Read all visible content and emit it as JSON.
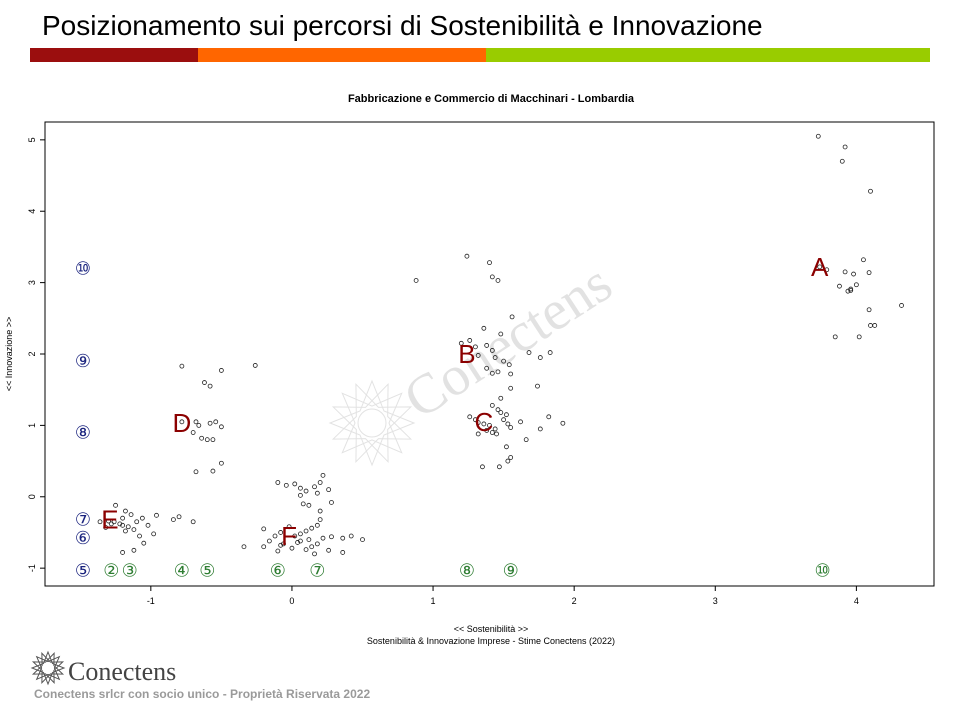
{
  "slide": {
    "title": "Posizionamento sui percorsi di Sostenibilità e Innovazione",
    "stripe_colors": [
      "#9b0e0e",
      "#ff6600",
      "#99cc00"
    ]
  },
  "footer": {
    "brand": "Conectens",
    "text": "Conectens srlcr con socio unico - Proprietà Riservata 2022"
  },
  "watermark": "Conectens",
  "chart_data": {
    "type": "scatter",
    "title": "Fabbricazione e Commercio di Macchinari - Lombardia",
    "xlabel": "<< Sostenibilità >>",
    "subtitle": "Sostenibilità & Innovazione Imprese - Stime Conectens (2022)",
    "ylabel": "<< Innovazione >>",
    "xlim": [
      -1.75,
      4.55
    ],
    "ylim": [
      -1.25,
      5.25
    ],
    "x_ticks": [
      -1,
      0,
      1,
      2,
      3,
      4
    ],
    "y_ticks": [
      -1,
      0,
      1,
      2,
      3,
      4,
      5
    ],
    "grid": false,
    "points": [
      [
        3.73,
        5.05
      ],
      [
        3.92,
        4.9
      ],
      [
        3.9,
        4.7
      ],
      [
        4.1,
        4.28
      ],
      [
        4.05,
        3.32
      ],
      [
        4.09,
        3.14
      ],
      [
        3.98,
        3.12
      ],
      [
        3.92,
        3.15
      ],
      [
        3.79,
        3.18
      ],
      [
        3.74,
        3.22
      ],
      [
        3.96,
        2.91
      ],
      [
        4.0,
        2.97
      ],
      [
        3.88,
        2.95
      ],
      [
        3.94,
        2.88
      ],
      [
        3.96,
        2.89
      ],
      [
        4.09,
        2.62
      ],
      [
        4.32,
        2.68
      ],
      [
        4.1,
        2.4
      ],
      [
        4.13,
        2.4
      ],
      [
        3.85,
        2.24
      ],
      [
        4.02,
        2.24
      ],
      [
        1.24,
        3.37
      ],
      [
        1.4,
        3.28
      ],
      [
        1.42,
        3.08
      ],
      [
        1.46,
        3.03
      ],
      [
        0.88,
        3.03
      ],
      [
        1.56,
        2.52
      ],
      [
        1.36,
        2.36
      ],
      [
        1.48,
        2.28
      ],
      [
        1.26,
        2.19
      ],
      [
        1.2,
        2.15
      ],
      [
        1.3,
        2.1
      ],
      [
        1.38,
        2.12
      ],
      [
        1.42,
        2.05
      ],
      [
        1.32,
        1.98
      ],
      [
        1.44,
        1.95
      ],
      [
        1.5,
        1.9
      ],
      [
        1.54,
        1.85
      ],
      [
        1.38,
        1.8
      ],
      [
        1.46,
        1.75
      ],
      [
        1.42,
        1.73
      ],
      [
        1.55,
        1.72
      ],
      [
        1.68,
        2.02
      ],
      [
        1.76,
        1.95
      ],
      [
        1.83,
        2.02
      ],
      [
        1.74,
        1.55
      ],
      [
        1.55,
        1.52
      ],
      [
        1.48,
        1.38
      ],
      [
        1.42,
        1.28
      ],
      [
        1.46,
        1.22
      ],
      [
        1.48,
        1.18
      ],
      [
        1.52,
        1.15
      ],
      [
        1.26,
        1.12
      ],
      [
        1.3,
        1.08
      ],
      [
        1.32,
        1.04
      ],
      [
        1.36,
        1.02
      ],
      [
        1.4,
        1.0
      ],
      [
        1.44,
        0.95
      ],
      [
        1.5,
        1.08
      ],
      [
        1.53,
        1.02
      ],
      [
        1.55,
        0.97
      ],
      [
        1.42,
        0.9
      ],
      [
        1.38,
        0.93
      ],
      [
        1.45,
        0.88
      ],
      [
        1.32,
        0.88
      ],
      [
        1.82,
        1.12
      ],
      [
        1.92,
        1.03
      ],
      [
        1.62,
        1.05
      ],
      [
        1.76,
        0.95
      ],
      [
        1.66,
        0.8
      ],
      [
        1.52,
        0.7
      ],
      [
        1.55,
        0.55
      ],
      [
        1.53,
        0.5
      ],
      [
        1.35,
        0.42
      ],
      [
        1.47,
        0.42
      ],
      [
        -0.78,
        1.83
      ],
      [
        -0.26,
        1.84
      ],
      [
        -0.5,
        1.77
      ],
      [
        -0.62,
        1.6
      ],
      [
        -0.58,
        1.55
      ],
      [
        -0.78,
        1.05
      ],
      [
        -0.68,
        1.05
      ],
      [
        -0.66,
        1.0
      ],
      [
        -0.58,
        1.03
      ],
      [
        -0.54,
        1.05
      ],
      [
        -0.5,
        0.98
      ],
      [
        -0.56,
        0.8
      ],
      [
        -0.6,
        0.8
      ],
      [
        -0.64,
        0.82
      ],
      [
        -0.7,
        0.9
      ],
      [
        -0.5,
        0.47
      ],
      [
        -0.56,
        0.36
      ],
      [
        -0.68,
        0.35
      ],
      [
        -1.25,
        -0.12
      ],
      [
        -1.18,
        -0.2
      ],
      [
        -1.14,
        -0.25
      ],
      [
        -1.2,
        -0.3
      ],
      [
        -1.26,
        -0.35
      ],
      [
        -1.3,
        -0.34
      ],
      [
        -1.22,
        -0.38
      ],
      [
        -1.16,
        -0.42
      ],
      [
        -1.1,
        -0.35
      ],
      [
        -1.06,
        -0.3
      ],
      [
        -1.02,
        -0.4
      ],
      [
        -0.96,
        -0.26
      ],
      [
        -0.84,
        -0.32
      ],
      [
        -0.8,
        -0.28
      ],
      [
        -0.7,
        -0.35
      ],
      [
        -1.12,
        -0.46
      ],
      [
        -1.18,
        -0.48
      ],
      [
        -1.08,
        -0.55
      ],
      [
        -1.05,
        -0.65
      ],
      [
        -1.12,
        -0.75
      ],
      [
        -1.2,
        -0.78
      ],
      [
        -0.98,
        -0.52
      ],
      [
        -1.36,
        -0.35
      ],
      [
        -1.32,
        -0.43
      ],
      [
        -1.28,
        -0.38
      ],
      [
        -1.2,
        -0.4
      ],
      [
        0.08,
        -0.1
      ],
      [
        0.12,
        -0.12
      ],
      [
        0.1,
        0.08
      ],
      [
        0.16,
        0.14
      ],
      [
        0.2,
        0.2
      ],
      [
        0.22,
        0.3
      ],
      [
        0.06,
        0.12
      ],
      [
        0.02,
        0.18
      ],
      [
        -0.04,
        0.16
      ],
      [
        -0.1,
        0.2
      ],
      [
        0.06,
        0.02
      ],
      [
        0.18,
        0.05
      ],
      [
        0.26,
        0.1
      ],
      [
        0.28,
        -0.08
      ],
      [
        0.2,
        -0.2
      ],
      [
        0.2,
        -0.32
      ],
      [
        0.18,
        -0.4
      ],
      [
        0.14,
        -0.44
      ],
      [
        0.1,
        -0.48
      ],
      [
        0.06,
        -0.52
      ],
      [
        0.02,
        -0.55
      ],
      [
        -0.02,
        -0.42
      ],
      [
        -0.08,
        -0.5
      ],
      [
        -0.12,
        -0.55
      ],
      [
        -0.2,
        -0.45
      ],
      [
        -0.16,
        -0.62
      ],
      [
        -0.08,
        -0.68
      ],
      [
        0.0,
        -0.72
      ],
      [
        0.06,
        -0.62
      ],
      [
        0.12,
        -0.6
      ],
      [
        0.18,
        -0.66
      ],
      [
        0.22,
        -0.58
      ],
      [
        0.28,
        -0.56
      ],
      [
        0.36,
        -0.58
      ],
      [
        0.42,
        -0.55
      ],
      [
        0.5,
        -0.6
      ],
      [
        0.36,
        -0.78
      ],
      [
        0.26,
        -0.75
      ],
      [
        0.16,
        -0.8
      ],
      [
        0.1,
        -0.74
      ],
      [
        -0.1,
        -0.76
      ],
      [
        -0.2,
        -0.7
      ],
      [
        -0.34,
        -0.7
      ],
      [
        -0.06,
        -0.66
      ],
      [
        0.04,
        -0.64
      ],
      [
        0.14,
        -0.7
      ]
    ],
    "cluster_labels": [
      {
        "text": "A",
        "x": 3.74,
        "y": 3.22
      },
      {
        "text": "B",
        "x": 1.24,
        "y": 2.0
      },
      {
        "text": "C",
        "x": 1.36,
        "y": 1.05
      },
      {
        "text": "D",
        "x": -0.78,
        "y": 1.03
      },
      {
        "text": "E",
        "x": -1.29,
        "y": -0.32
      },
      {
        "text": "F",
        "x": -0.02,
        "y": -0.55
      }
    ],
    "y_rank_markers": [
      {
        "text": "⑩",
        "y": 3.2
      },
      {
        "text": "⑨",
        "y": 1.9
      },
      {
        "text": "⑧",
        "y": 0.9
      },
      {
        "text": "⑦",
        "y": -0.32
      },
      {
        "text": "⑥",
        "y": -0.58
      },
      {
        "text": "⑤",
        "y": -1.03
      }
    ],
    "x_rank_markers": [
      {
        "text": "②",
        "x": -1.28
      },
      {
        "text": "③",
        "x": -1.15
      },
      {
        "text": "④",
        "x": -0.78
      },
      {
        "text": "⑤",
        "x": -0.6
      },
      {
        "text": "⑥",
        "x": -0.1
      },
      {
        "text": "⑦",
        "x": 0.18
      },
      {
        "text": "⑧",
        "x": 1.24
      },
      {
        "text": "⑨",
        "x": 1.55
      },
      {
        "text": "⑩",
        "x": 3.76
      }
    ],
    "colors": {
      "points": "#222222",
      "cluster_labels": "#8b0000",
      "y_rank_markers": "#1a237e",
      "x_rank_markers": "#2e7d32"
    }
  }
}
